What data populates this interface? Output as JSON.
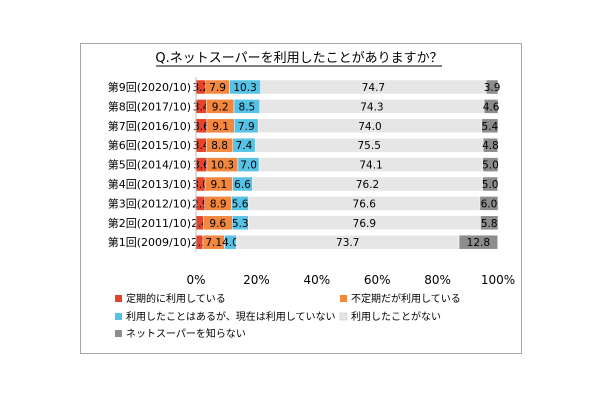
{
  "chart_data": {
    "type": "bar",
    "stacked": true,
    "orientation": "horizontal",
    "title": "Q.ネットスーパーを利用したことがありますか？",
    "categories": [
      "第9回(2020/10)",
      "第8回(2017/10)",
      "第7回(2016/10)",
      "第6回(2015/10)",
      "第5回(2014/10)",
      "第4回(2013/10)",
      "第3回(2012/10)",
      "第2回(2011/10)",
      "第1回(2009/10)"
    ],
    "series": [
      {
        "name": "定期的に利用している",
        "color": "#e5432a",
        "values": [
          3.2,
          3.4,
          3.6,
          3.4,
          3.6,
          3.0,
          2.9,
          2.4,
          2.3
        ]
      },
      {
        "name": "不定期だが利用している",
        "color": "#f2873d",
        "values": [
          7.9,
          9.2,
          9.1,
          8.8,
          10.3,
          9.1,
          8.9,
          9.6,
          7.1
        ]
      },
      {
        "name": "利用したことはあるが、現在は利用していない",
        "color": "#56c3e6",
        "values": [
          10.3,
          8.5,
          7.9,
          7.4,
          7.0,
          6.6,
          5.6,
          5.3,
          4.0
        ]
      },
      {
        "name": "利用したことがない",
        "color": "#e6e6e6",
        "values": [
          74.7,
          74.3,
          74.0,
          75.5,
          74.1,
          76.2,
          76.6,
          76.9,
          73.7
        ]
      },
      {
        "name": "ネットスーパーを知らない",
        "color": "#8c8c8c",
        "values": [
          3.9,
          4.6,
          5.4,
          4.8,
          5.0,
          5.0,
          6.0,
          5.8,
          12.8
        ]
      }
    ],
    "xlim": [
      0,
      100
    ],
    "x_ticks": [
      "0%",
      "20%",
      "40%",
      "60%",
      "80%",
      "100%"
    ],
    "grid": false,
    "legend_position": "bottom"
  }
}
